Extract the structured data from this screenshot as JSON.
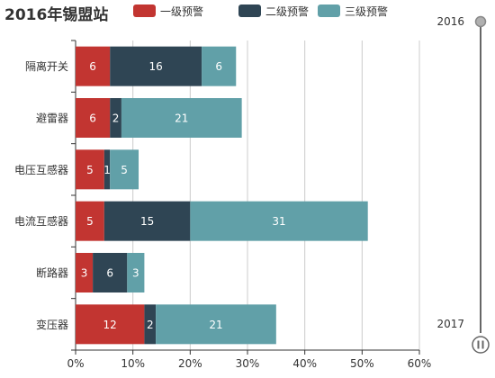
{
  "chart_data": {
    "type": "bar",
    "orientation": "horizontal",
    "stacked": true,
    "title": "2016年锡盟站",
    "categories": [
      "隔离开关",
      "避雷器",
      "电压互感器",
      "电流互感器",
      "断路器",
      "变压器"
    ],
    "series": [
      {
        "name": "一级预警",
        "color": "#c23531",
        "values": [
          6,
          6,
          5,
          5,
          3,
          12
        ]
      },
      {
        "name": "二级预警",
        "color": "#2f4554",
        "values": [
          16,
          2,
          1,
          15,
          6,
          2
        ]
      },
      {
        "name": "三级预警",
        "color": "#61a0a8",
        "values": [
          6,
          21,
          5,
          31,
          3,
          21
        ]
      }
    ],
    "x_axis": {
      "min": 0,
      "max": 60,
      "ticks": [
        0,
        10,
        20,
        30,
        40,
        50,
        60
      ],
      "tick_labels": [
        "0%",
        "10%",
        "20%",
        "30%",
        "40%",
        "50%",
        "60%"
      ]
    },
    "grid": "vertical",
    "legend_position": "top"
  },
  "timeline": {
    "start_label": "2016",
    "end_label": "2017",
    "current": "2016"
  },
  "colors": {
    "text": "#333333",
    "axis": "#333333",
    "grid": "#cccccc",
    "timeline": "#666666",
    "handle": "#b0b0b0"
  }
}
